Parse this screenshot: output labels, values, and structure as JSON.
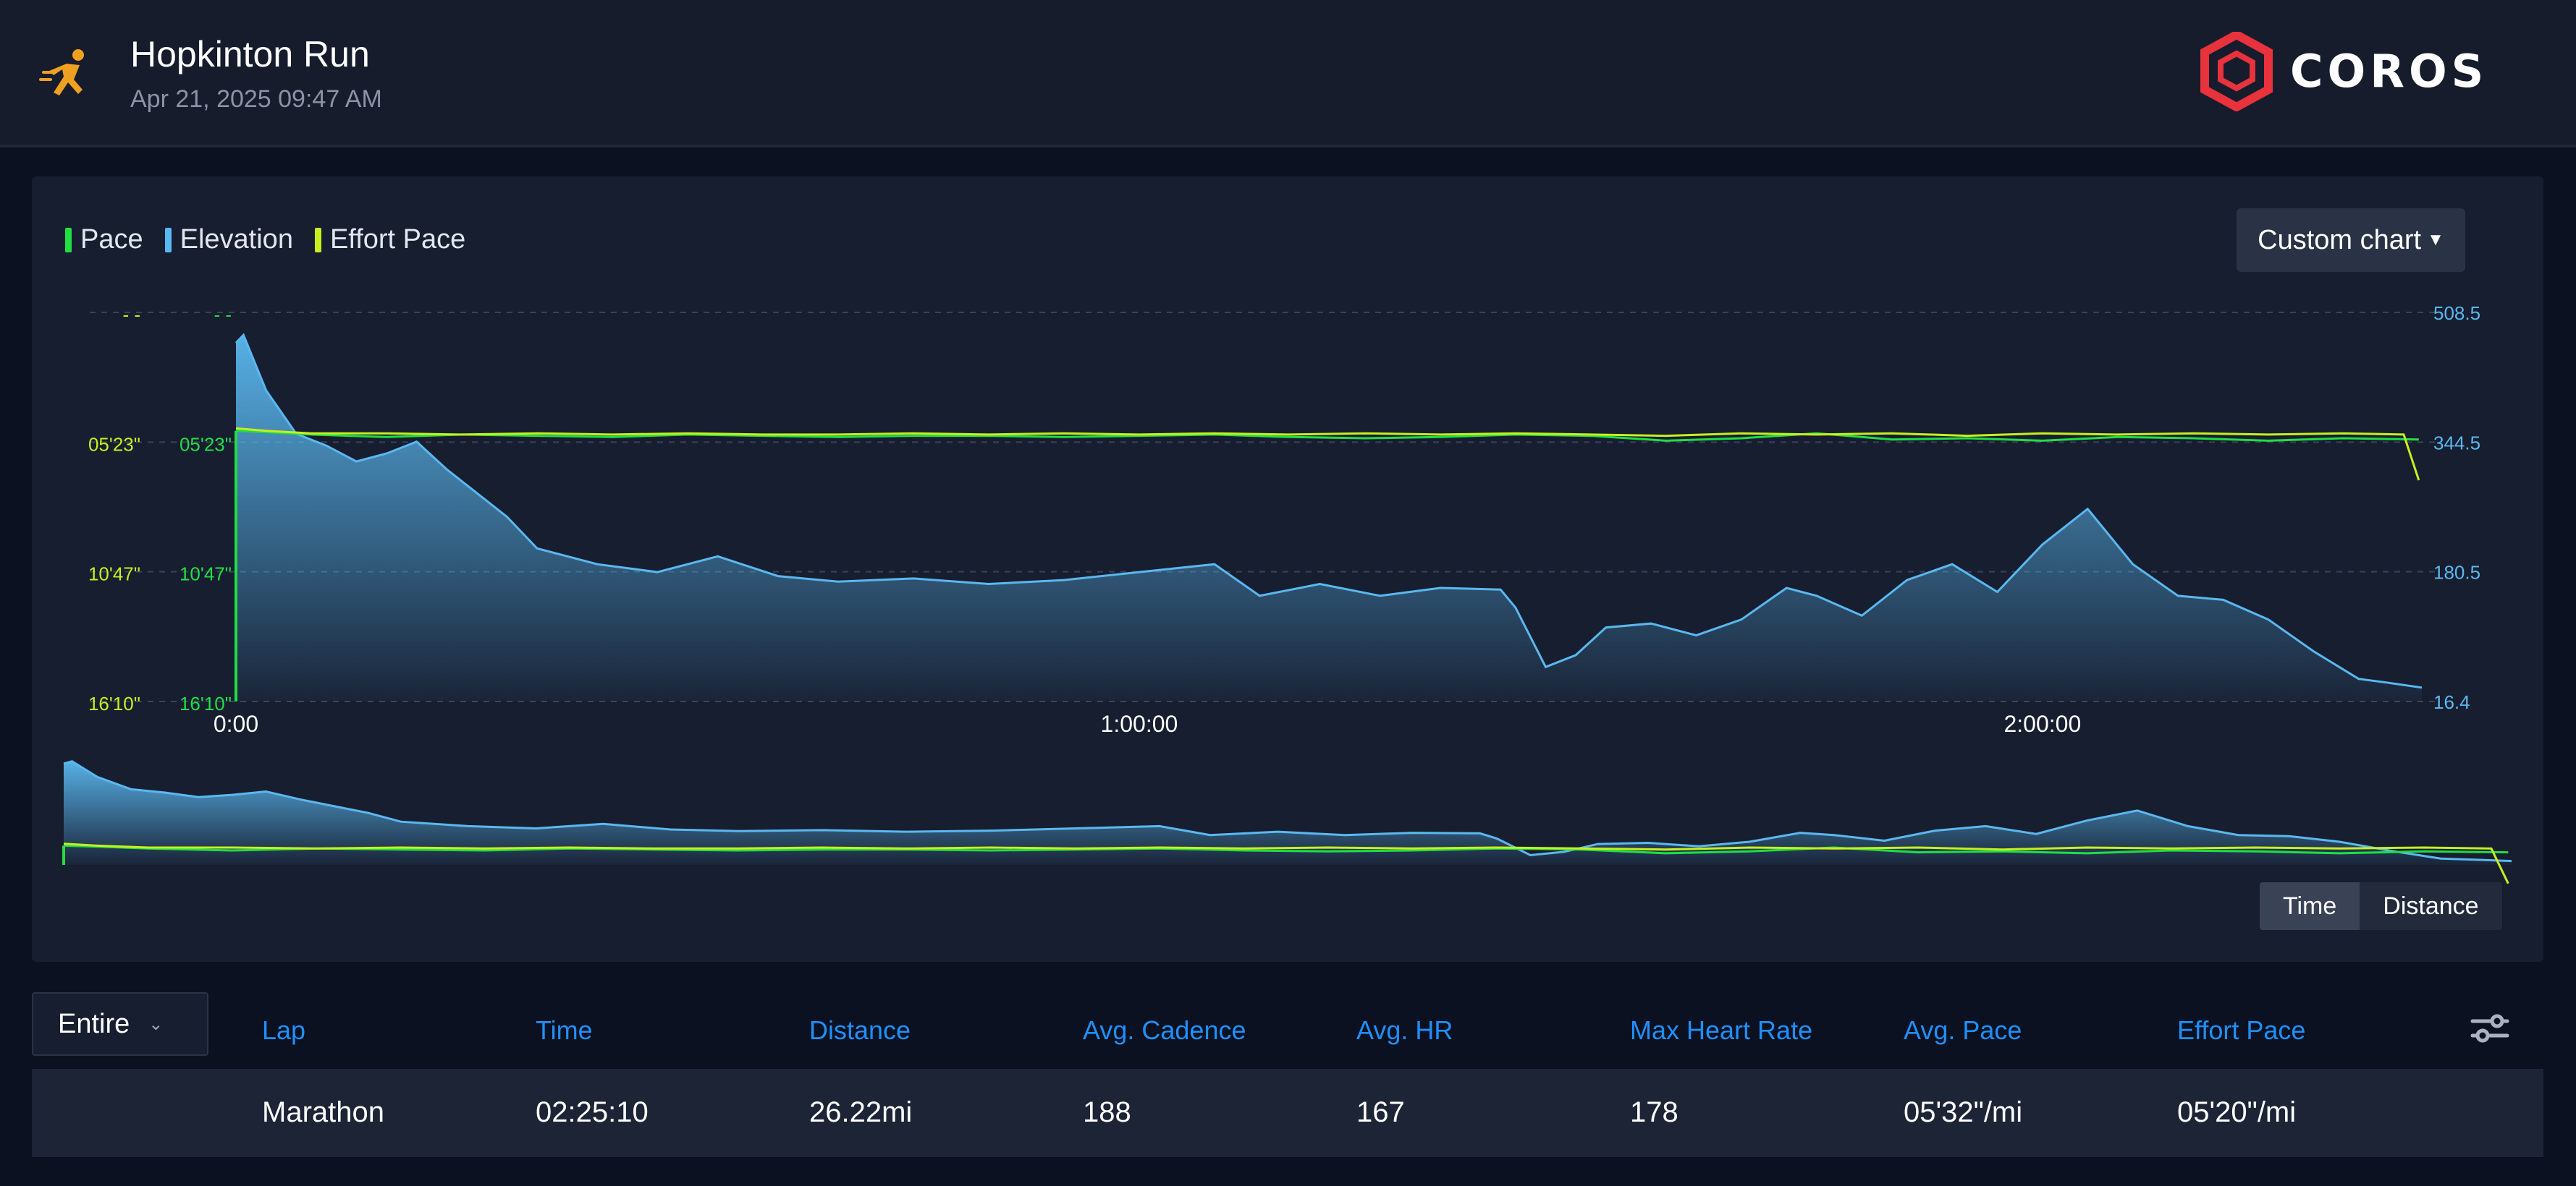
{
  "activity": {
    "title": "Hopkinton Run",
    "datetime": "Apr 21, 2025 09:47 AM",
    "icon": "runner-icon"
  },
  "brand": {
    "logo_text": "COROS",
    "color": "#e8323c"
  },
  "chart_controls": {
    "custom_chart_label": "Custom chart",
    "x_mode_options": [
      "Time",
      "Distance"
    ],
    "x_mode_selected": "Time"
  },
  "colors": {
    "pace": "#22dd44",
    "elevation": "#5ab8f0",
    "effort_pace": "#c6f01e",
    "table_header": "#1e90ff"
  },
  "chart_data": {
    "type": "line",
    "x_label_ticks": [
      "0:00",
      "1:00:00",
      "2:00:00"
    ],
    "x_range_min": [
      0,
      145.2
    ],
    "left_axis_ticks": [
      "- -",
      "05'23\"",
      "10'47\"",
      "16'10\""
    ],
    "pace_axis_ticks": [
      "- -",
      "05'23\"",
      "10'47\"",
      "16'10\""
    ],
    "right_axis_ticks": [
      "508.5",
      "344.5",
      "180.5",
      "16.4"
    ],
    "ylim_elevation": [
      16.4,
      508.5
    ],
    "grid": true,
    "legend_position": "top-left",
    "series": [
      {
        "name": "Pace",
        "unit": "min/mi",
        "x_min": [
          0,
          2,
          5,
          10,
          15,
          20,
          25,
          30,
          35,
          40,
          45,
          50,
          55,
          60,
          65,
          70,
          75,
          80,
          85,
          90,
          95,
          100,
          105,
          110,
          115,
          120,
          125,
          130,
          135,
          140,
          145
        ],
        "values_min_per_mi": [
          5.2,
          5.25,
          5.35,
          5.45,
          5.35,
          5.4,
          5.45,
          5.35,
          5.4,
          5.45,
          5.4,
          5.4,
          5.45,
          5.4,
          5.35,
          5.45,
          5.5,
          5.45,
          5.35,
          5.4,
          5.6,
          5.5,
          5.3,
          5.55,
          5.5,
          5.6,
          5.45,
          5.5,
          5.6,
          5.5,
          5.55
        ]
      },
      {
        "name": "Elevation",
        "unit": "ft",
        "x_min": [
          0,
          0.5,
          2,
          4,
          6,
          8,
          10,
          12,
          14,
          16,
          18,
          20,
          24,
          28,
          32,
          36,
          40,
          45,
          50,
          55,
          60,
          65,
          68,
          72,
          76,
          80,
          84,
          85,
          87,
          89,
          91,
          94,
          97,
          100,
          103,
          105,
          108,
          111,
          114,
          117,
          120,
          123,
          126,
          129,
          132,
          135,
          138,
          141,
          143,
          145.2
        ],
        "values": [
          470,
          480,
          410,
          355,
          340,
          320,
          330,
          345,
          310,
          280,
          250,
          210,
          190,
          180,
          200,
          175,
          168,
          172,
          165,
          170,
          180,
          190,
          150,
          165,
          150,
          160,
          158,
          135,
          60,
          75,
          110,
          115,
          100,
          120,
          160,
          150,
          125,
          170,
          190,
          155,
          215,
          260,
          190,
          150,
          145,
          120,
          80,
          45,
          40,
          34
        ]
      },
      {
        "name": "Effort Pace",
        "unit": "min/mi",
        "x_min": [
          0,
          2,
          5,
          10,
          15,
          20,
          25,
          30,
          35,
          40,
          45,
          50,
          55,
          60,
          65,
          70,
          75,
          80,
          85,
          90,
          95,
          100,
          105,
          110,
          115,
          120,
          125,
          130,
          135,
          140,
          144,
          145
        ],
        "values_min_per_mi": [
          5.1,
          5.2,
          5.3,
          5.3,
          5.35,
          5.3,
          5.35,
          5.3,
          5.35,
          5.35,
          5.3,
          5.35,
          5.3,
          5.35,
          5.3,
          5.35,
          5.3,
          5.35,
          5.3,
          5.35,
          5.4,
          5.3,
          5.35,
          5.3,
          5.4,
          5.3,
          5.35,
          5.3,
          5.35,
          5.3,
          5.35,
          7.2
        ]
      }
    ]
  },
  "laps": {
    "scope_label": "Entire",
    "columns": [
      "Lap",
      "Time",
      "Distance",
      "Avg. Cadence",
      "Avg. HR",
      "Max Heart Rate",
      "Avg. Pace",
      "Effort Pace"
    ],
    "rows": [
      [
        "Marathon",
        "02:25:10",
        "26.22mi",
        "188",
        "167",
        "178",
        "05'32\"/mi",
        "05'20\"/mi"
      ]
    ]
  }
}
